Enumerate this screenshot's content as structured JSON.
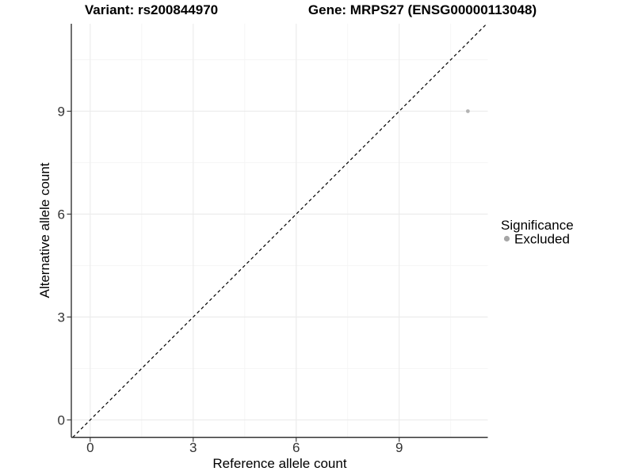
{
  "chart_data": {
    "type": "scatter",
    "titles": {
      "left": "Variant: rs200844970",
      "right": "Gene: MRPS27 (ENSG00000113048)"
    },
    "xlabel": "Reference allele count",
    "ylabel": "Alternative allele count",
    "x_ticks": {
      "values": [
        0,
        3,
        6,
        9
      ],
      "labels": [
        "0",
        "3",
        "6",
        "9"
      ],
      "minor": [
        1.5,
        4.5,
        7.5,
        10.5
      ]
    },
    "y_ticks": {
      "values": [
        0,
        3,
        6,
        9
      ],
      "labels": [
        "0",
        "3",
        "6",
        "9"
      ],
      "minor": [
        1.5,
        4.5,
        7.5,
        10.5
      ]
    },
    "xlim": [
      -0.55,
      11.58
    ],
    "ylim": [
      -0.51,
      11.55
    ],
    "grid": "major+minor",
    "reference_line": {
      "kind": "identity",
      "slope": 1,
      "intercept": 0,
      "style": "dashed",
      "color": "#000000"
    },
    "series": [
      {
        "name": "Excluded",
        "color": "#b3b3b3",
        "points": [
          {
            "x": 11,
            "y": 9
          }
        ]
      }
    ],
    "legend": {
      "title": "Significance",
      "position": "right",
      "items": [
        {
          "label": "Excluded",
          "color": "#a6a6a6"
        }
      ]
    }
  },
  "colors": {
    "background": "#ffffff",
    "axis_line": "#333333",
    "tick_mark": "#333333",
    "tick_label": "#333333",
    "grid_major": "#ebebeb",
    "grid_minor": "#f5f5f5",
    "point": "#b3b3b3",
    "legend_key": "#a6a6a6",
    "reference_line": "#000000"
  }
}
